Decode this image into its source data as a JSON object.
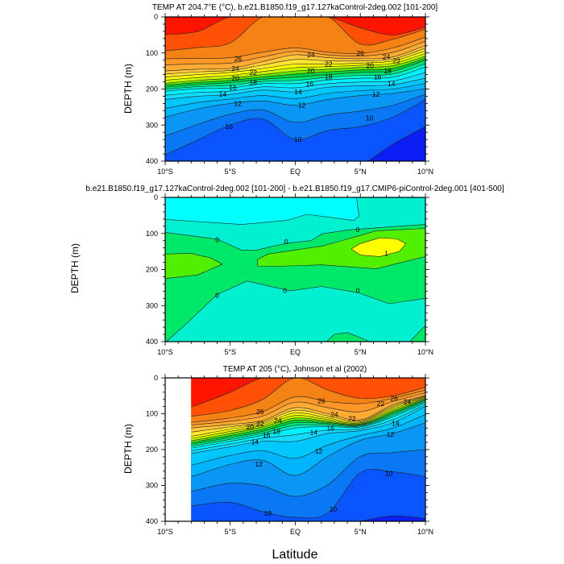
{
  "figure": {
    "xlabel": "Latitude"
  },
  "chart_data": [
    {
      "type": "contour",
      "title": "TEMP AT 204.7°E (°C), b.e21.B1850.f19_g17.127kaControl-2deg.002 [101-200]",
      "ylabel": "DEPTH (m)",
      "xlabel": "Latitude",
      "xlim": [
        -10,
        10
      ],
      "ylim": [
        400,
        0
      ],
      "data_lat_range": [
        -10,
        10
      ],
      "x_ticks": [
        -10,
        -5,
        0,
        5,
        10
      ],
      "x_tick_labels": [
        "10°S",
        "5°S",
        "EQ",
        "5°N",
        "10°N"
      ],
      "y_ticks": [
        0,
        100,
        200,
        300,
        400
      ],
      "y_tick_labels": [
        "0",
        "100",
        "200",
        "300",
        "400"
      ],
      "band_colors": [
        "#0a1ef5",
        "#0a55ff",
        "#0a78f5",
        "#0a96f5",
        "#00b4ff",
        "#00c8ff",
        "#14dcff",
        "#00f0ff",
        "#00f5d2",
        "#00e678",
        "#00d23c",
        "#64e600",
        "#c8f500",
        "#ffff00",
        "#ffe632",
        "#ffc83c",
        "#ffaa32",
        "#ff9628",
        "#f58214",
        "#ff5005",
        "#ff1400"
      ],
      "min_level": 9,
      "lats": [
        -10,
        -7.5,
        -5,
        -2.5,
        0,
        2.5,
        5,
        7.5,
        10
      ],
      "isotherm_depths": {
        "9": [
          420,
          420,
          420,
          420,
          420,
          420,
          410,
          353,
          304
        ],
        "10": [
          383,
          341,
          300,
          283,
          340,
          315,
          304,
          278,
          229
        ],
        "12": [
          278,
          255,
          240,
          233,
          245,
          229,
          218,
          212,
          199
        ],
        "14": [
          229,
          220,
          215,
          203,
          208,
          195,
          191,
          188,
          170
        ],
        "16": [
          206,
          199,
          197,
          185,
          185,
          175,
          170,
          167,
          139
        ],
        "18": [
          195,
          188,
          182,
          173,
          167,
          160,
          154,
          150,
          120
        ],
        "20": [
          184,
          176,
          170,
          160,
          150,
          145,
          140,
          135,
          109
        ],
        "22": [
          167,
          160,
          154,
          143,
          131,
          131,
          128,
          122,
          94
        ],
        "24": [
          150,
          145,
          143,
          124,
          105,
          113,
          116,
          111,
          79
        ],
        "26": [
          116,
          115,
          113,
          98,
          86,
          98,
          101,
          86,
          56
        ],
        "27": [
          94,
          85,
          72,
          0,
          0,
          0,
          75,
          62,
          34
        ],
        "28": [
          49,
          40,
          0,
          0,
          0,
          0,
          30,
          50,
          28
        ]
      },
      "contour_labels": [
        {
          "text": "26",
          "lat": -4.4,
          "depth": 116
        },
        {
          "text": "24",
          "lat": -4.6,
          "depth": 143
        },
        {
          "text": "22",
          "lat": -4.6,
          "depth": 154
        },
        {
          "text": "20",
          "lat": -4.6,
          "depth": 170
        },
        {
          "text": "18",
          "lat": -4.6,
          "depth": 182
        },
        {
          "text": "16",
          "lat": -4.8,
          "depth": 197
        },
        {
          "text": "14",
          "lat": -4.9,
          "depth": 215
        },
        {
          "text": "12",
          "lat": -5.1,
          "depth": 240
        },
        {
          "text": "10",
          "lat": -5.1,
          "depth": 304
        },
        {
          "text": "24",
          "lat": 1.2,
          "depth": 105
        },
        {
          "text": "22",
          "lat": 1.2,
          "depth": 131
        },
        {
          "text": "20",
          "lat": 1.2,
          "depth": 150
        },
        {
          "text": "18",
          "lat": 1.2,
          "depth": 167
        },
        {
          "text": "16",
          "lat": 1.1,
          "depth": 185
        },
        {
          "text": "14",
          "lat": 0.9,
          "depth": 208
        },
        {
          "text": "12",
          "lat": 0.5,
          "depth": 245
        },
        {
          "text": "10",
          "lat": 0.2,
          "depth": 340
        },
        {
          "text": "26",
          "lat": 5.0,
          "depth": 100
        },
        {
          "text": "24",
          "lat": 7.0,
          "depth": 111
        },
        {
          "text": "22",
          "lat": 7.1,
          "depth": 122
        },
        {
          "text": "20",
          "lat": 7.1,
          "depth": 135
        },
        {
          "text": "18",
          "lat": 7.1,
          "depth": 150
        },
        {
          "text": "16",
          "lat": 7.0,
          "depth": 167
        },
        {
          "text": "14",
          "lat": 6.7,
          "depth": 186
        },
        {
          "text": "12",
          "lat": 6.2,
          "depth": 214
        },
        {
          "text": "10",
          "lat": 5.7,
          "depth": 280
        }
      ]
    },
    {
      "type": "contour",
      "title": "b.e21.B1850.f19_g17.127kaControl-2deg.002 [101-200] - b.e21.B1850.f19_g17.CMIP6-piControl-2deg.001 [401-500]",
      "ylabel": "DEPTH (m)",
      "xlabel": "Latitude",
      "xlim": [
        -10,
        10
      ],
      "ylim": [
        400,
        0
      ],
      "x_ticks": [
        -10,
        -5,
        0,
        5,
        10
      ],
      "x_tick_labels": [
        "10°S",
        "5°S",
        "EQ",
        "5°N",
        "10°N"
      ],
      "y_ticks": [
        0,
        100,
        200,
        300,
        400
      ],
      "y_tick_labels": [
        "0",
        "100",
        "200",
        "300",
        "400"
      ],
      "levels": [
        -0.5,
        0,
        0.5,
        1
      ],
      "background_color": "#00f0d0",
      "regions": [
        {
          "band": "<-0.5",
          "color": "#00ffff",
          "outline": [
            [
              -10,
              0
            ],
            [
              -10,
              61
            ],
            [
              -4.15,
              75
            ],
            [
              -0.64,
              64
            ],
            [
              0.9,
              47
            ],
            [
              4.5,
              64
            ],
            [
              4.9,
              52
            ],
            [
              4.7,
              0
            ]
          ]
        },
        {
          "band": "0-0.5",
          "color": "#00e86a",
          "outline": [
            [
              -10,
              97
            ],
            [
              -6,
              116
            ],
            [
              -4.15,
              146
            ],
            [
              -3.1,
              147
            ],
            [
              -0.64,
              127
            ],
            [
              1.2,
              120
            ],
            [
              2.05,
              101
            ],
            [
              4.1,
              90
            ],
            [
              8.2,
              79
            ],
            [
              10,
              75
            ],
            [
              10,
              280
            ],
            [
              7.2,
              295
            ],
            [
              4.9,
              265
            ],
            [
              2.05,
              247
            ],
            [
              -0.4,
              259
            ],
            [
              -3.7,
              232
            ],
            [
              -6,
              269
            ],
            [
              -8.3,
              348
            ],
            [
              -9.9,
              400
            ],
            [
              -10,
              400
            ]
          ]
        },
        {
          "band": "0-0.5",
          "color": "#00e86a",
          "outline": [
            [
              2.4,
              400
            ],
            [
              3,
              380
            ],
            [
              4,
              375
            ],
            [
              5.2,
              392
            ],
            [
              5.7,
              400
            ]
          ]
        },
        {
          "band": "0-0.5",
          "color": "#00e86a",
          "outline": [
            [
              8.8,
              400
            ],
            [
              10,
              355
            ],
            [
              10,
              400
            ]
          ]
        },
        {
          "band": "0.5-1",
          "color": "#50f000",
          "outline": [
            [
              -10,
              157
            ],
            [
              -8,
              155
            ],
            [
              -6.5,
              168
            ],
            [
              -5.6,
              185
            ],
            [
              -7.5,
              215
            ],
            [
              -10,
              225
            ]
          ]
        },
        {
          "band": "0.5-1",
          "color": "#50f000",
          "outline": [
            [
              -2.9,
              172
            ],
            [
              -2.1,
              157
            ],
            [
              0,
              146
            ],
            [
              2.05,
              135
            ],
            [
              3.3,
              123
            ],
            [
              6.2,
              93
            ],
            [
              10,
              86
            ],
            [
              10,
              164
            ],
            [
              6.2,
              198
            ],
            [
              2.05,
              187
            ],
            [
              -1.5,
              191
            ],
            [
              -2.9,
              191
            ]
          ]
        },
        {
          "band": ">1",
          "color": "#ffff00",
          "outline": [
            [
              4.3,
              143
            ],
            [
              5,
              128
            ],
            [
              6.5,
              112
            ],
            [
              7.8,
              115
            ],
            [
              8.5,
              128
            ],
            [
              8,
              150
            ],
            [
              6.5,
              164
            ],
            [
              5,
              160
            ]
          ]
        }
      ],
      "contour_labels": [
        {
          "text": "0",
          "lat": -6,
          "depth": 117
        },
        {
          "text": "0",
          "lat": -0.7,
          "depth": 123
        },
        {
          "text": "0",
          "lat": 4.8,
          "depth": 89
        },
        {
          "text": "0",
          "lat": -6,
          "depth": 271
        },
        {
          "text": "0",
          "lat": -0.8,
          "depth": 258
        },
        {
          "text": "0",
          "lat": 4.8,
          "depth": 258
        },
        {
          "text": "1",
          "lat": 7,
          "depth": 155
        }
      ]
    },
    {
      "type": "contour",
      "title": "TEMP AT 205 (°C), Johnson et al (2002)",
      "ylabel": "DEPTH (m)",
      "xlabel": "Latitude",
      "xlim": [
        -10,
        10
      ],
      "ylim": [
        400,
        0
      ],
      "data_lat_range": [
        -8,
        10
      ],
      "x_ticks": [
        -10,
        -5,
        0,
        5,
        10
      ],
      "x_tick_labels": [
        "10°S",
        "5°S",
        "EQ",
        "5°N",
        "10°N"
      ],
      "y_ticks": [
        0,
        100,
        200,
        300,
        400
      ],
      "y_tick_labels": [
        "0",
        "100",
        "200",
        "300",
        "400"
      ],
      "band_colors": [
        "#0a1ef5",
        "#0a55ff",
        "#0a78f5",
        "#0a96f5",
        "#00b4ff",
        "#00c8ff",
        "#14dcff",
        "#00f0ff",
        "#00f5d2",
        "#00e678",
        "#00d23c",
        "#64e600",
        "#c8f500",
        "#ffff00",
        "#ffe632",
        "#ffc83c",
        "#ffaa32",
        "#ff9628",
        "#f58214",
        "#ff5005",
        "#ff1400"
      ],
      "min_level": 9,
      "lats": [
        -8,
        -7.5,
        -5,
        -2.5,
        0,
        2.5,
        5,
        7.5,
        10
      ],
      "isotherm_depths": {
        "9": [
          420,
          420,
          420,
          420,
          420,
          420,
          400,
          385,
          392
        ],
        "10": [
          358,
          355,
          347,
          373,
          389,
          377,
          264,
          262,
          275
        ],
        "12": [
          275,
          270,
          241,
          230,
          272,
          219,
          174,
          155,
          125
        ],
        "14": [
          211,
          208,
          192,
          177,
          177,
          155,
          147,
          125,
          79
        ],
        "16": [
          196,
          193,
          177,
          160,
          140,
          136,
          137,
          109,
          68
        ],
        "18": [
          185,
          182,
          166,
          149,
          125,
          128,
          132,
          100,
          62
        ],
        "20": [
          175,
          172,
          155,
          137,
          112,
          121,
          128,
          92,
          57
        ],
        "22": [
          162,
          160,
          143,
          128,
          98,
          112,
          123,
          83,
          53
        ],
        "24": [
          140,
          138,
          130,
          119,
          83,
          100,
          117,
          75,
          49
        ],
        "26": [
          125,
          122,
          112,
          94,
          53,
          66,
          72,
          57,
          34
        ],
        "27": [
          106,
          105,
          91,
          60,
          0,
          34,
          57,
          50,
          26
        ],
        "28": [
          79,
          75,
          40,
          0,
          0,
          0,
          0,
          0,
          0
        ]
      },
      "contour_labels": [
        {
          "text": "26",
          "lat": -2.7,
          "depth": 94
        },
        {
          "text": "24",
          "lat": -2.7,
          "depth": 119
        },
        {
          "text": "22",
          "lat": -2.7,
          "depth": 128
        },
        {
          "text": "20",
          "lat": -2.8,
          "depth": 137
        },
        {
          "text": "18",
          "lat": -2.8,
          "depth": 149
        },
        {
          "text": "16",
          "lat": -2.9,
          "depth": 160
        },
        {
          "text": "14",
          "lat": -3.1,
          "depth": 179
        },
        {
          "text": "12",
          "lat": -2.8,
          "depth": 240
        },
        {
          "text": "10",
          "lat": -2.8,
          "depth": 387
        },
        {
          "text": "26",
          "lat": 2.0,
          "depth": 64
        },
        {
          "text": "24",
          "lat": 3.0,
          "depth": 102
        },
        {
          "text": "22",
          "lat": 3.0,
          "depth": 113
        },
        {
          "text": "16",
          "lat": 2.7,
          "depth": 140
        },
        {
          "text": "14",
          "lat": 2.1,
          "depth": 152
        },
        {
          "text": "12",
          "lat": 1.8,
          "depth": 204
        },
        {
          "text": "10",
          "lat": 2.9,
          "depth": 366
        },
        {
          "text": "26",
          "lat": 7.6,
          "depth": 57
        },
        {
          "text": "24",
          "lat": 8.6,
          "depth": 66
        },
        {
          "text": "22",
          "lat": 8.6,
          "depth": 72
        },
        {
          "text": "14",
          "lat": 7.7,
          "depth": 127
        },
        {
          "text": "12",
          "lat": 7.3,
          "depth": 157
        },
        {
          "text": "10",
          "lat": 7.2,
          "depth": 266
        }
      ]
    }
  ]
}
